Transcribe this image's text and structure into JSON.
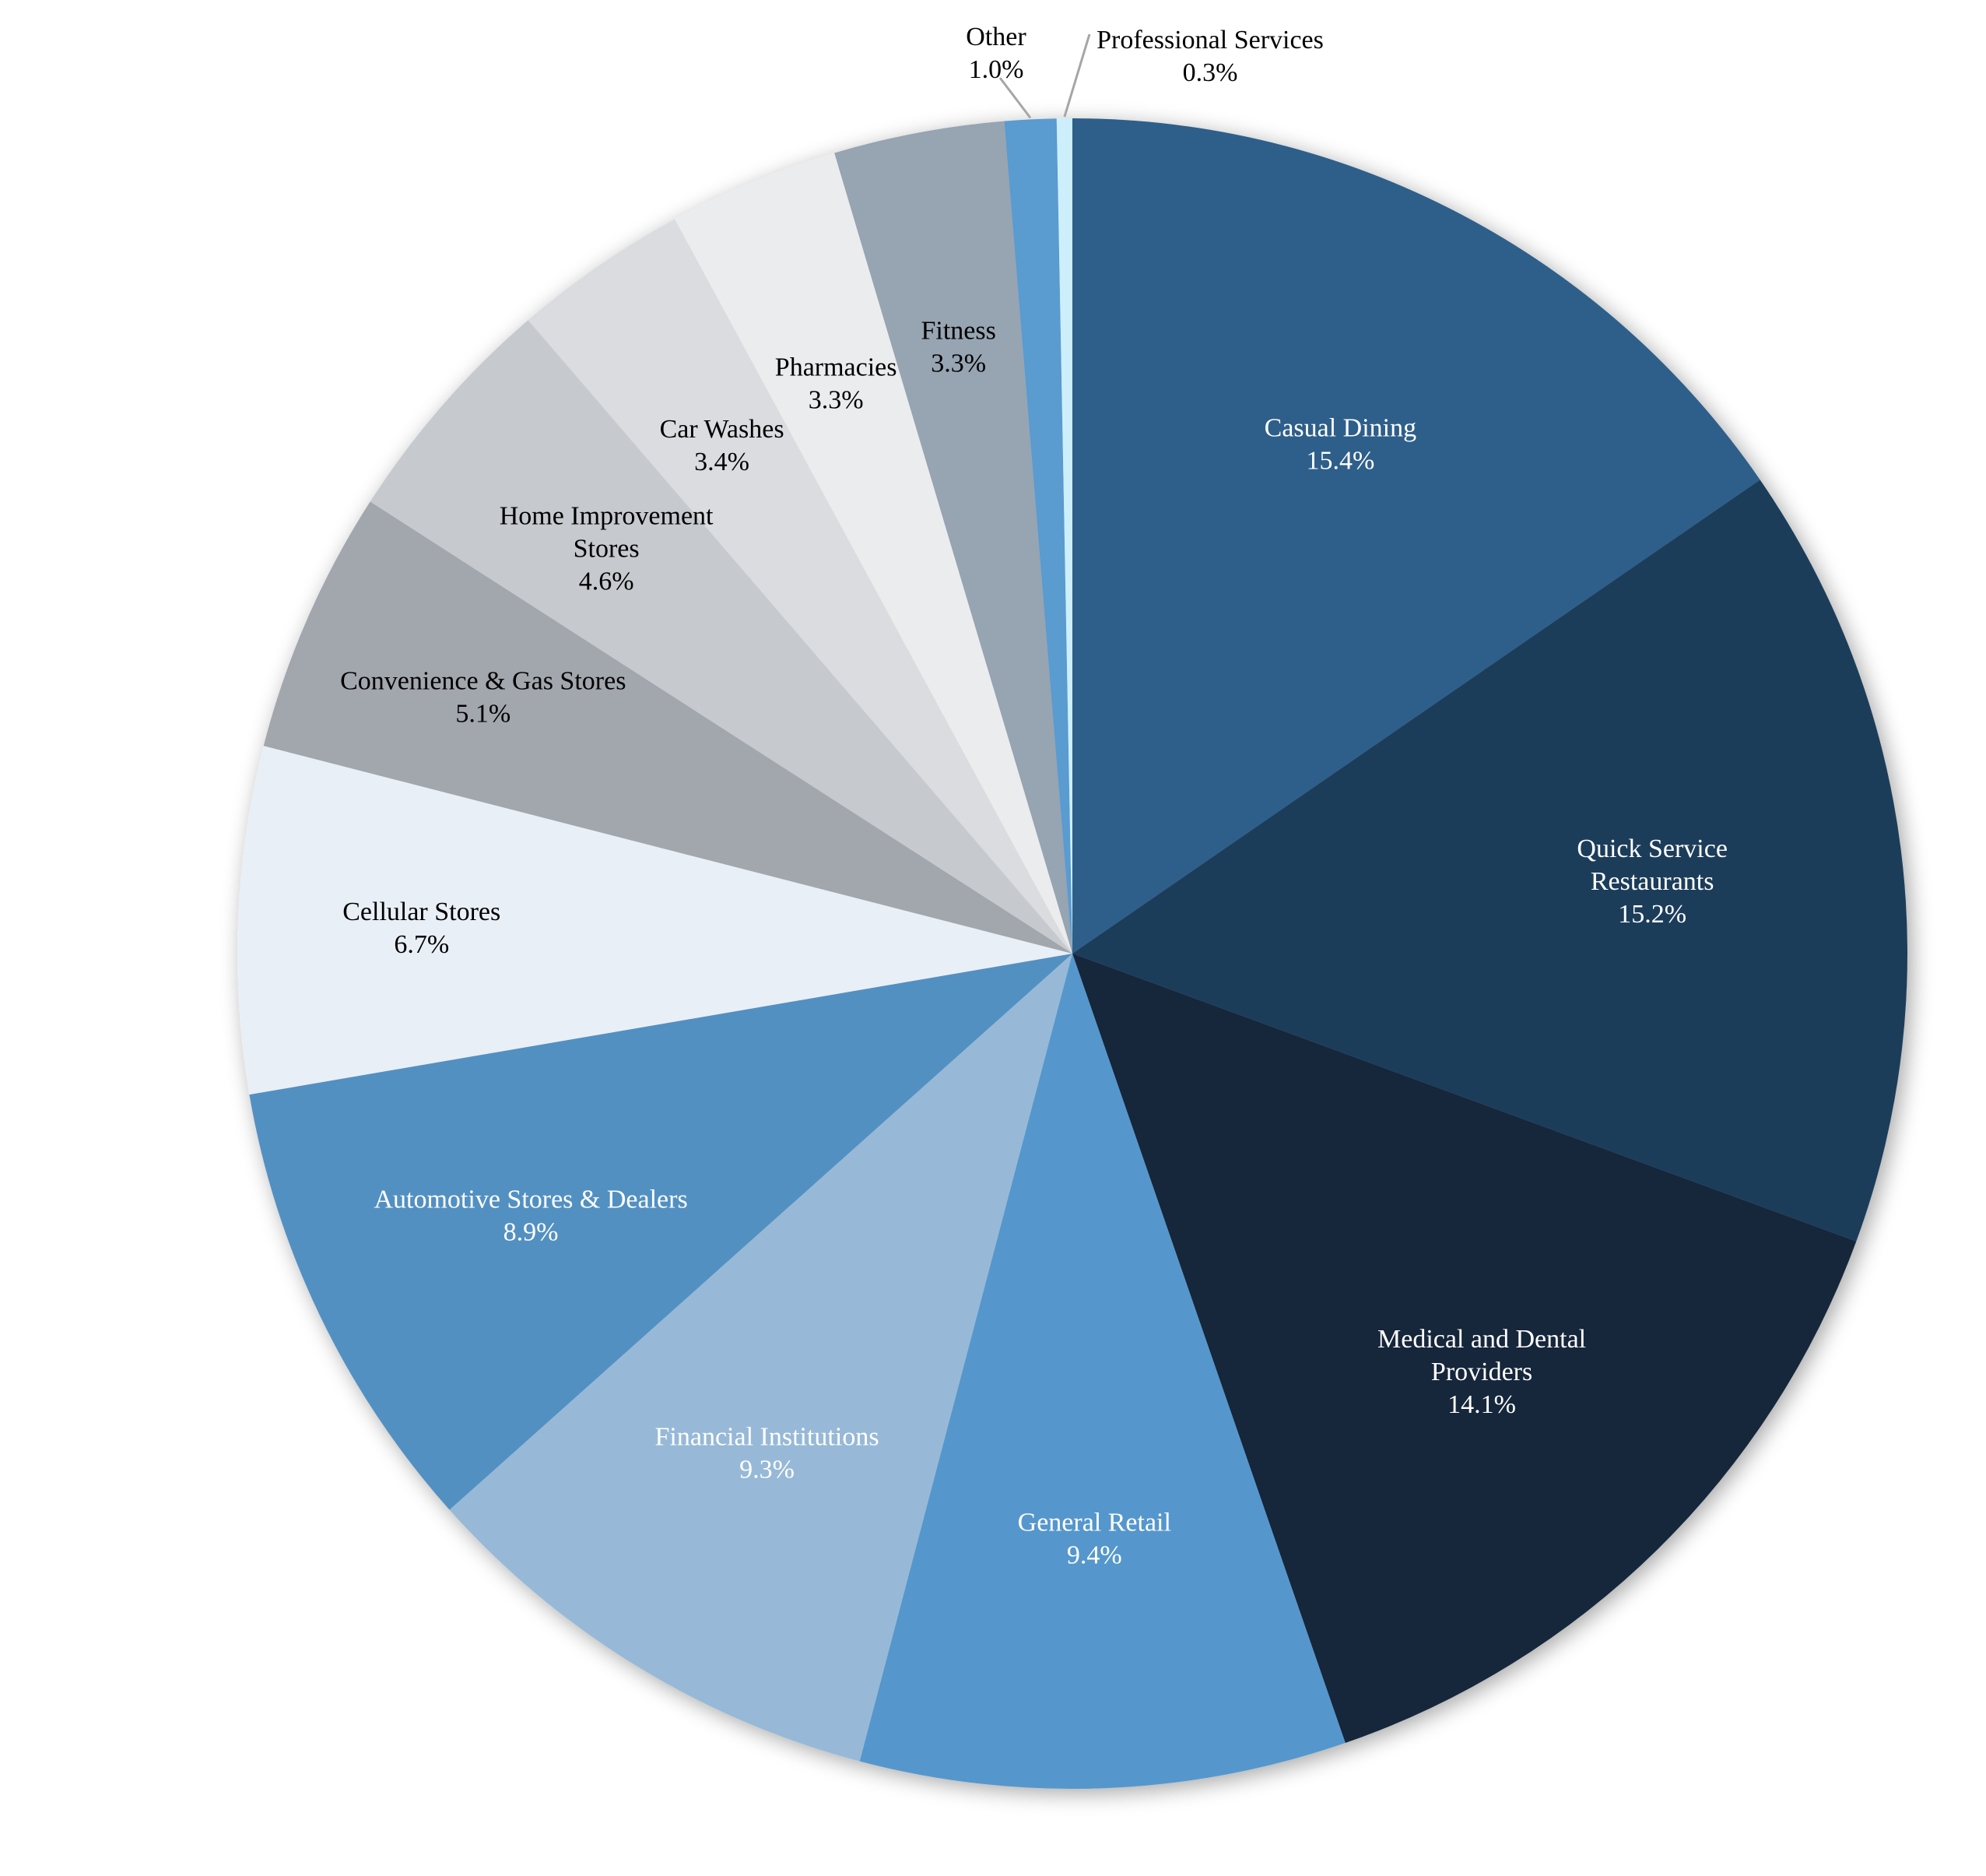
{
  "chart_data": {
    "type": "pie",
    "title": "",
    "start": "top",
    "direction": "clockwise",
    "slices": [
      {
        "label": "Casual Dining",
        "lines": [
          "Casual Dining"
        ],
        "value": 15.4,
        "pct_label": "15.4%",
        "color": "#2d5f8a",
        "text_color": "#ffffff"
      },
      {
        "label": "Quick Service Restaurants",
        "lines": [
          "Quick Service",
          "Restaurants"
        ],
        "value": 15.2,
        "pct_label": "15.2%",
        "color": "#1c3c5a",
        "text_color": "#ffffff"
      },
      {
        "label": "Medical and Dental Providers",
        "lines": [
          "Medical and Dental",
          "Providers"
        ],
        "value": 14.1,
        "pct_label": "14.1%",
        "color": "#13263b",
        "text_color": "#ffffff"
      },
      {
        "label": "General Retail",
        "lines": [
          "General Retail"
        ],
        "value": 9.4,
        "pct_label": "9.4%",
        "color": "#5597cc",
        "text_color": "#ffffff"
      },
      {
        "label": "Financial Institutions",
        "lines": [
          "Financial Institutions"
        ],
        "value": 9.3,
        "pct_label": "9.3%",
        "color": "#97b9d7",
        "text_color": "#ffffff"
      },
      {
        "label": "Automotive Stores & Dealers",
        "lines": [
          "Automotive Stores & Dealers"
        ],
        "value": 8.9,
        "pct_label": "8.9%",
        "color": "#5390c2",
        "text_color": "#ffffff"
      },
      {
        "label": "Cellular Stores",
        "lines": [
          "Cellular Stores"
        ],
        "value": 6.7,
        "pct_label": "6.7%",
        "color": "#e9eff6",
        "text_color": "#000000"
      },
      {
        "label": "Convenience & Gas Stores",
        "lines": [
          "Convenience & Gas Stores"
        ],
        "value": 5.1,
        "pct_label": "5.1%",
        "color": "#a2a6ad",
        "text_color": "#000000"
      },
      {
        "label": "Home Improvement Stores",
        "lines": [
          "Home Improvement",
          "Stores"
        ],
        "value": 4.6,
        "pct_label": "4.6%",
        "color": "#c6c9cd",
        "text_color": "#000000"
      },
      {
        "label": "Car Washes",
        "lines": [
          "Car Washes"
        ],
        "value": 3.4,
        "pct_label": "3.4%",
        "color": "#dbdcdf",
        "text_color": "#000000"
      },
      {
        "label": "Pharmacies",
        "lines": [
          "Pharmacies"
        ],
        "value": 3.3,
        "pct_label": "3.3%",
        "color": "#ebecee",
        "text_color": "#000000"
      },
      {
        "label": "Fitness",
        "lines": [
          "Fitness"
        ],
        "value": 3.3,
        "pct_label": "3.3%",
        "color": "#97a4b2",
        "text_color": "#000000"
      },
      {
        "label": "Other",
        "lines": [
          "Other"
        ],
        "value": 1.0,
        "pct_label": "1.0%",
        "color": "#5a9bd0",
        "text_color": "#000000",
        "outside": true
      },
      {
        "label": "Professional Services",
        "lines": [
          "Professional Services"
        ],
        "value": 0.3,
        "pct_label": "0.3%",
        "color": "#cdeefb",
        "text_color": "#000000",
        "outside": true
      }
    ]
  }
}
